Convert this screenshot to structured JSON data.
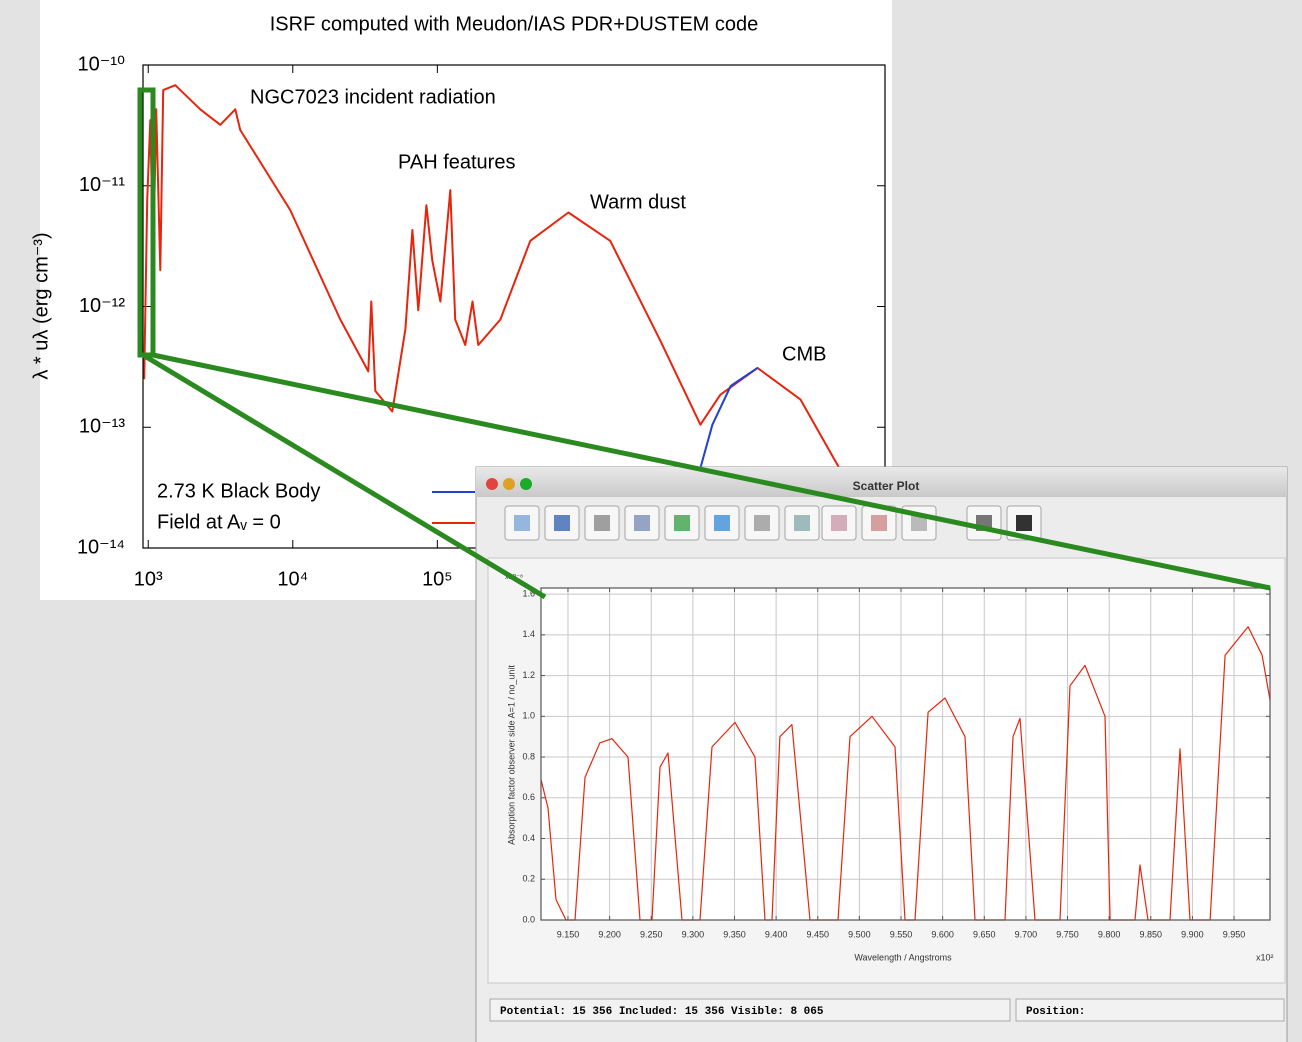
{
  "chart_data": [
    {
      "type": "line",
      "title": "ISRF computed with Meudon/IAS PDR+DUSTEM code",
      "y_label": "λ * uλ (erg cm⁻³)",
      "xscale": "log",
      "yscale": "log",
      "xlim": [
        920,
        125000000
      ],
      "ylim": [
        1e-14,
        1e-10
      ],
      "xticks": [
        {
          "value": 1000,
          "label": "10³"
        },
        {
          "value": 10000,
          "label": "10⁴"
        },
        {
          "value": 100000,
          "label": "10⁵"
        }
      ],
      "yticks": [
        {
          "value": 1e-10,
          "label": "10⁻¹⁰"
        },
        {
          "value": 1e-11,
          "label": "10⁻¹¹"
        },
        {
          "value": 1e-12,
          "label": "10⁻¹²"
        },
        {
          "value": 1e-13,
          "label": "10⁻¹³"
        },
        {
          "value": 1e-14,
          "label": "10⁻¹⁴"
        }
      ],
      "grid": false,
      "annotations": [
        "NGC7023 incident radiation",
        "PAH features",
        "Warm dust",
        "CMB"
      ],
      "series": [
        {
          "name": "Field at Aᵥ = 0",
          "color": "#e8250c",
          "x": [
            938,
            984,
            1033,
            1083,
            1136,
            1211,
            1270,
            1540,
            2290,
            3150,
            4000,
            4330,
            9600,
            21300,
            33300,
            34900,
            37200,
            48800,
            60100,
            67200,
            73900,
            84000,
            92300,
            105000,
            123000,
            133000,
            156000,
            175000,
            192000,
            273000,
            440000,
            807000,
            1570000,
            3490000,
            6610000,
            9080000,
            16400000,
            32500000,
            61500000
          ],
          "values": [
            2.5e-13,
            7.6e-12,
            3.5e-11,
            2.4e-12,
            4.3e-11,
            2e-12,
            6.2e-11,
            6.8e-11,
            4.3e-11,
            3.2e-11,
            4.3e-11,
            2.9e-11,
            6.3e-12,
            7.8e-13,
            2.9e-13,
            1.1e-12,
            2e-13,
            1.35e-13,
            6.5e-13,
            4.3e-12,
            9.3e-13,
            6.9e-12,
            2.4e-12,
            1.1e-12,
            9.2e-12,
            7.8e-13,
            4.8e-13,
            1.1e-12,
            4.8e-13,
            7.8e-13,
            3.5e-12,
            6e-12,
            3.5e-12,
            5.2e-13,
            1.05e-13,
            1.86e-13,
            3.1e-13,
            1.7e-13,
            4.4e-14
          ]
        },
        {
          "name": "2.73 K Black Body",
          "color": "#1f3fd6",
          "x": [
            6610000,
            8000000,
            10700000,
            16400000
          ],
          "values": [
            4.6e-14,
            1.05e-13,
            2.2e-13,
            3.1e-13
          ]
        }
      ]
    },
    {
      "type": "line",
      "y_label": "Absorption factor observer side A=1 / no_unit",
      "y_multiplier": "x10⁻⁸",
      "x_label": "Wavelength / Angstroms",
      "x_multiplier": "x10²",
      "xlim": [
        9.1176,
        9.9932
      ],
      "ylim": [
        0,
        1.63
      ],
      "xticks": [
        {
          "value": 9.15,
          "label": "9.150"
        },
        {
          "value": 9.2,
          "label": "9.200"
        },
        {
          "value": 9.25,
          "label": "9.250"
        },
        {
          "value": 9.3,
          "label": "9.300"
        },
        {
          "value": 9.35,
          "label": "9.350"
        },
        {
          "value": 9.4,
          "label": "9.400"
        },
        {
          "value": 9.45,
          "label": "9.450"
        },
        {
          "value": 9.5,
          "label": "9.500"
        },
        {
          "value": 9.55,
          "label": "9.550"
        },
        {
          "value": 9.6,
          "label": "9.600"
        },
        {
          "value": 9.65,
          "label": "9.650"
        },
        {
          "value": 9.7,
          "label": "9.700"
        },
        {
          "value": 9.75,
          "label": "9.750"
        },
        {
          "value": 9.8,
          "label": "9.800"
        },
        {
          "value": 9.85,
          "label": "9.850"
        },
        {
          "value": 9.9,
          "label": "9.900"
        },
        {
          "value": 9.95,
          "label": "9.950"
        }
      ],
      "yticks": [
        {
          "value": 0,
          "label": "0.0"
        },
        0.2,
        0.4,
        0.6,
        0.8,
        {
          "value": 1,
          "label": "1.0"
        },
        1.2,
        1.4,
        1.6
      ],
      "grid": true,
      "color": "#e8250c",
      "x": [
        9.1176,
        9.126,
        9.1356,
        9.1476,
        9.1584,
        9.1704,
        9.1884,
        9.2029,
        9.2221,
        9.2365,
        9.2509,
        9.2605,
        9.2701,
        9.2869,
        9.3086,
        9.323,
        9.3506,
        9.3746,
        9.3866,
        9.395,
        9.4046,
        9.419,
        9.4407,
        9.4743,
        9.4887,
        9.5152,
        9.5428,
        9.5548,
        9.5668,
        9.5825,
        9.6029,
        9.6269,
        9.6389,
        9.6749,
        9.6845,
        9.6929,
        9.7109,
        9.741,
        9.753,
        9.771,
        9.795,
        9.8011,
        9.8311,
        9.8371,
        9.8467,
        9.8731,
        9.8851,
        9.8971,
        9.9212,
        9.9393,
        9.9669,
        9.9837,
        9.9932
      ],
      "values": [
        0.69,
        0.55,
        0.1,
        0,
        0,
        0.7,
        0.87,
        0.89,
        0.8,
        0,
        0,
        0.75,
        0.82,
        0,
        0,
        0.85,
        0.97,
        0.8,
        0,
        0,
        0.9,
        0.96,
        0,
        0,
        0.9,
        1.0,
        0.85,
        0,
        0,
        1.02,
        1.09,
        0.9,
        0,
        0,
        0.9,
        0.99,
        0,
        0,
        1.15,
        1.25,
        1.0,
        0,
        0,
        0.27,
        0,
        0,
        0.84,
        0,
        0,
        1.3,
        1.44,
        1.3,
        1.08
      ]
    }
  ],
  "window": {
    "title": "Scatter Plot",
    "status": [
      "Potential: 15 356 Included: 15 356 Visible:  8 065",
      "Position:"
    ]
  }
}
